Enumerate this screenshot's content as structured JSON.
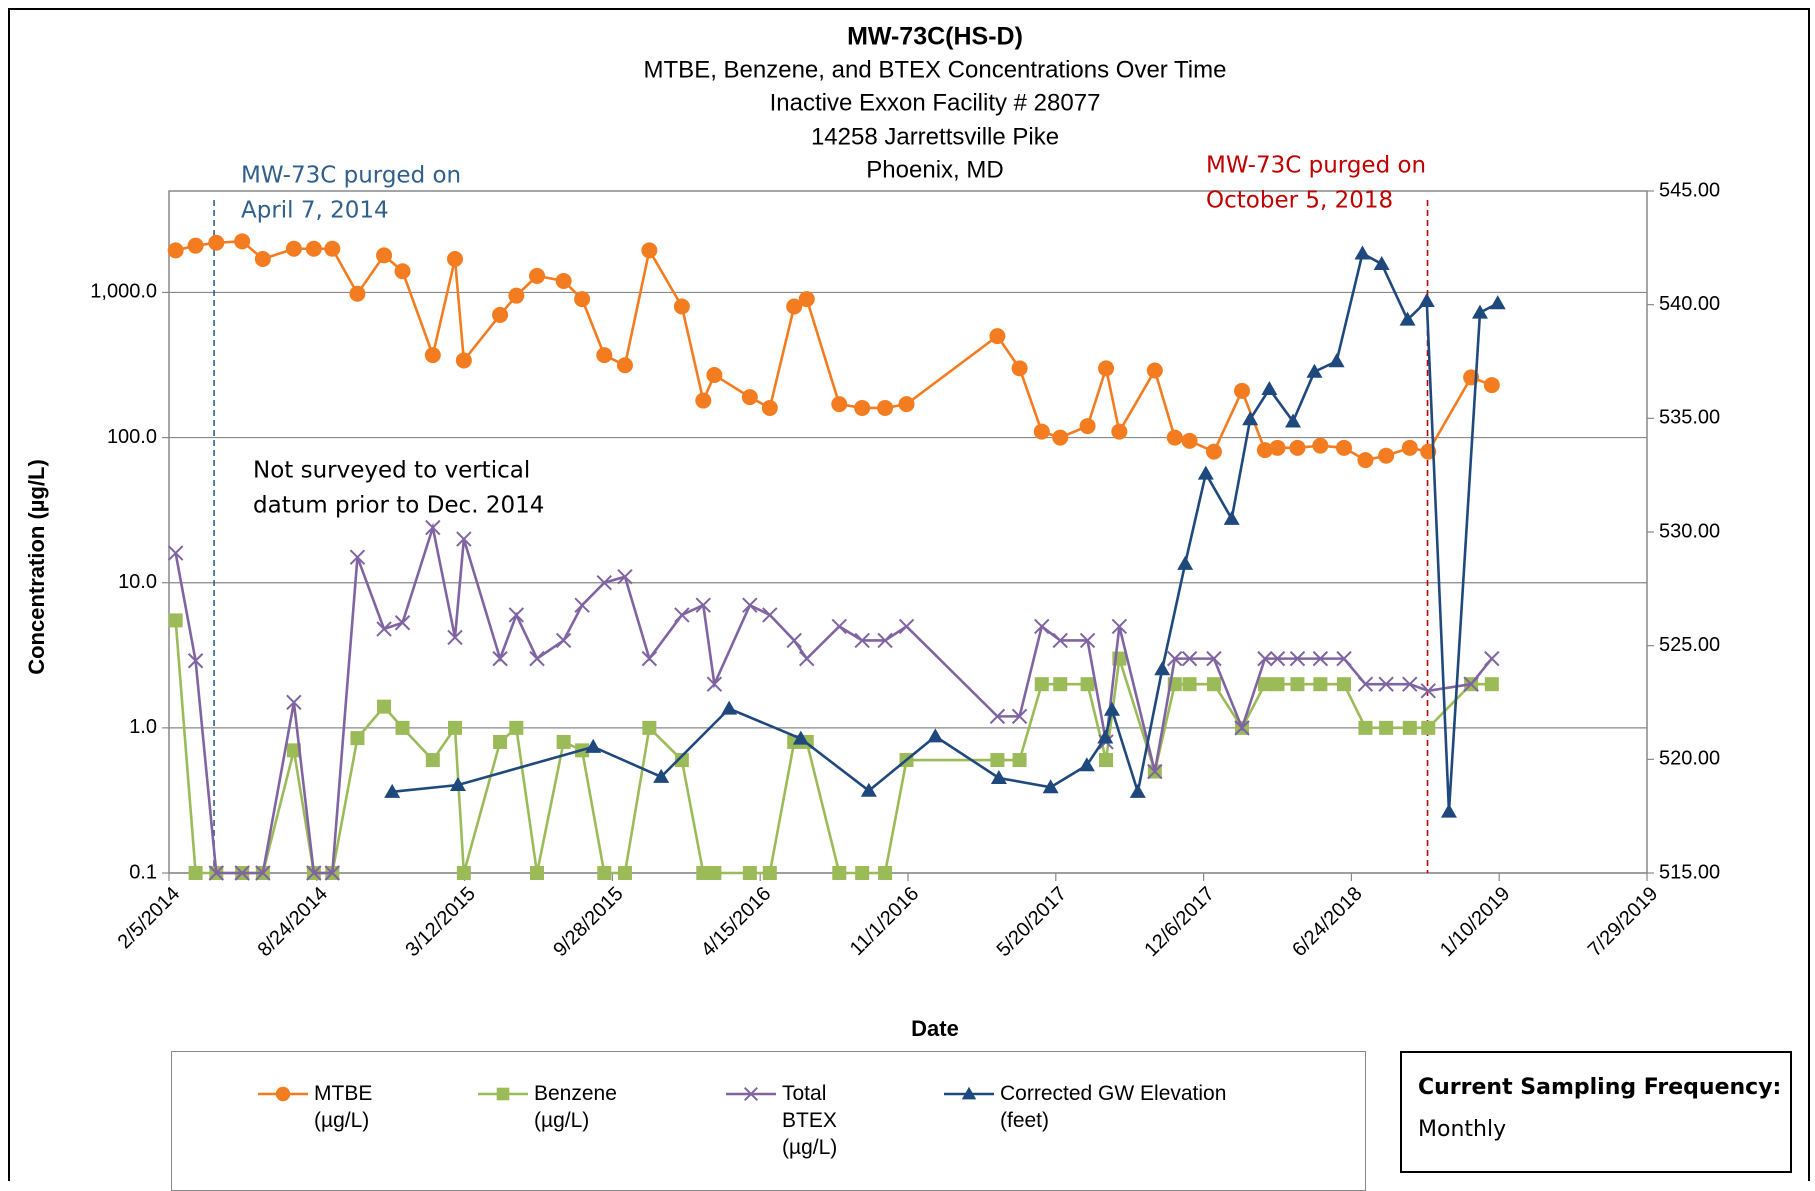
{
  "chart_data": {
    "type": "line",
    "title": "MW-73C(HS-D)",
    "subtitle": [
      "MTBE, Benzene, and BTEX Concentrations Over Time",
      "Inactive Exxon Facility # 28077",
      "14258 Jarrettsville Pike",
      "Phoenix, MD"
    ],
    "x_label": "Date",
    "y_label": "Concentration (µg/L)",
    "yscale": "log",
    "grid": true,
    "xlim": [
      "2014-02-05",
      "2019-07-29"
    ],
    "xticks": [
      {
        "value": "2014-02-05",
        "label": "2/5/2014"
      },
      {
        "value": "2014-08-24",
        "label": "8/24/2014"
      },
      {
        "value": "2015-03-12",
        "label": "3/12/2015"
      },
      {
        "value": "2015-09-28",
        "label": "9/28/2015"
      },
      {
        "value": "2016-04-15",
        "label": "4/15/2016"
      },
      {
        "value": "2016-11-01",
        "label": "11/1/2016"
      },
      {
        "value": "2017-05-20",
        "label": "5/20/2017"
      },
      {
        "value": "2017-12-06",
        "label": "12/6/2017"
      },
      {
        "value": "2018-06-24",
        "label": "6/24/2018"
      },
      {
        "value": "2019-01-10",
        "label": "1/10/2019"
      },
      {
        "value": "2019-07-29",
        "label": "7/29/2019"
      }
    ],
    "ylim": [
      0.1,
      5000
    ],
    "yticks": [
      0.1,
      {
        "value": 1,
        "label": "1.0"
      },
      {
        "value": 10,
        "label": "10.0"
      },
      {
        "value": 100,
        "label": "100.0"
      },
      {
        "value": 1000,
        "label": "1,000.0"
      }
    ],
    "y2lim": [
      515,
      545
    ],
    "y2ticks": [
      {
        "value": 515,
        "label": "515.00"
      },
      {
        "value": 520,
        "label": "520.00"
      },
      {
        "value": 525,
        "label": "525.00"
      },
      {
        "value": 530,
        "label": "530.00"
      },
      {
        "value": 535,
        "label": "535.00"
      },
      {
        "value": 540,
        "label": "540.00"
      },
      {
        "value": 545,
        "label": "545.00"
      }
    ],
    "annotations": [
      {
        "text": [
          "MW-73C purged on",
          "April 7, 2014"
        ],
        "x": "2014-04-07",
        "color": "#2f5f8a",
        "line": true
      },
      {
        "text": [
          "MW-73C purged on",
          "October 5, 2018"
        ],
        "x": "2018-10-05",
        "color": "#c00000",
        "line": true
      },
      {
        "text": [
          "Not surveyed to vertical",
          "datum prior to Dec. 2014"
        ],
        "color": "#000000",
        "line": false
      }
    ],
    "series": [
      {
        "name": "MTBE (µg/L)",
        "color": "#f47c20",
        "marker": "circle",
        "x": [
          "2014-02-14",
          "2014-03-13",
          "2014-04-10",
          "2014-05-15",
          "2014-06-12",
          "2014-07-24",
          "2014-08-20",
          "2014-09-14",
          "2014-10-18",
          "2014-11-23",
          "2014-12-18",
          "2015-01-28",
          "2015-02-27",
          "2015-03-11",
          "2015-04-29",
          "2015-05-21",
          "2015-06-18",
          "2015-07-24",
          "2015-08-18",
          "2015-09-17",
          "2015-10-15",
          "2015-11-17",
          "2015-12-31",
          "2016-01-29",
          "2016-02-13",
          "2016-04-01",
          "2016-04-28",
          "2016-05-31",
          "2016-06-17",
          "2016-07-31",
          "2016-08-31",
          "2016-10-01",
          "2016-10-30",
          "2017-03-02",
          "2017-04-01",
          "2017-05-01",
          "2017-05-26",
          "2017-07-02",
          "2017-07-27",
          "2017-08-14",
          "2017-10-01",
          "2017-10-28",
          "2017-11-17",
          "2017-12-20",
          "2018-01-27",
          "2018-02-27",
          "2018-03-16",
          "2018-04-12",
          "2018-05-13",
          "2018-06-14",
          "2018-07-13",
          "2018-08-10",
          "2018-09-11",
          "2018-10-06",
          "2018-12-03",
          "2018-12-31"
        ],
        "values": [
          1950,
          2100,
          2200,
          2250,
          1700,
          2000,
          2000,
          2000,
          980,
          1800,
          1400,
          370,
          1700,
          340,
          700,
          950,
          1300,
          1200,
          900,
          370,
          315,
          1950,
          800,
          180,
          270,
          190,
          160,
          800,
          900,
          170,
          160,
          160,
          170,
          500,
          300,
          110,
          100,
          120,
          300,
          110,
          290,
          100,
          95,
          80,
          210,
          82,
          85,
          85,
          88,
          85,
          70,
          75,
          85,
          80,
          260,
          230
        ]
      },
      {
        "name": "Benzene (µg/L)",
        "color": "#9bbb59",
        "marker": "square",
        "x": [
          "2014-02-14",
          "2014-03-13",
          "2014-04-10",
          "2014-05-15",
          "2014-06-12",
          "2014-07-24",
          "2014-08-20",
          "2014-09-14",
          "2014-10-18",
          "2014-11-23",
          "2014-12-18",
          "2015-01-28",
          "2015-02-27",
          "2015-03-11",
          "2015-04-29",
          "2015-05-21",
          "2015-06-18",
          "2015-07-24",
          "2015-08-18",
          "2015-09-17",
          "2015-10-15",
          "2015-11-17",
          "2015-12-31",
          "2016-01-29",
          "2016-02-13",
          "2016-04-01",
          "2016-04-28",
          "2016-05-31",
          "2016-06-17",
          "2016-07-31",
          "2016-08-31",
          "2016-10-01",
          "2016-10-30",
          "2017-03-02",
          "2017-04-01",
          "2017-05-01",
          "2017-05-26",
          "2017-07-02",
          "2017-07-27",
          "2017-08-14",
          "2017-10-01",
          "2017-10-28",
          "2017-11-17",
          "2017-12-20",
          "2018-01-27",
          "2018-02-27",
          "2018-03-16",
          "2018-04-12",
          "2018-05-13",
          "2018-06-14",
          "2018-07-13",
          "2018-08-10",
          "2018-09-11",
          "2018-10-06",
          "2018-12-03",
          "2018-12-31"
        ],
        "values": [
          5.5,
          0.1,
          0.1,
          0.1,
          0.1,
          0.7,
          0.1,
          0.1,
          0.85,
          1.4,
          1,
          0.6,
          1,
          0.1,
          0.8,
          1,
          0.1,
          0.8,
          0.7,
          0.1,
          0.1,
          1,
          0.6,
          0.1,
          0.1,
          0.1,
          0.1,
          0.8,
          0.8,
          0.1,
          0.1,
          0.1,
          0.6,
          0.6,
          0.6,
          2,
          2,
          2,
          0.6,
          3,
          0.5,
          2,
          2,
          2,
          1,
          2,
          2,
          2,
          2,
          2,
          1,
          1,
          1,
          1,
          2,
          2
        ]
      },
      {
        "name": "Total BTEX (µg/L)",
        "color": "#8064a2",
        "marker": "x",
        "x": [
          "2014-02-14",
          "2014-03-13",
          "2014-04-10",
          "2014-05-15",
          "2014-06-12",
          "2014-07-24",
          "2014-08-20",
          "2014-09-14",
          "2014-10-18",
          "2014-11-23",
          "2014-12-18",
          "2015-01-28",
          "2015-02-27",
          "2015-03-11",
          "2015-04-29",
          "2015-05-21",
          "2015-06-18",
          "2015-07-24",
          "2015-08-18",
          "2015-09-17",
          "2015-10-15",
          "2015-11-17",
          "2015-12-31",
          "2016-01-29",
          "2016-02-13",
          "2016-04-01",
          "2016-04-28",
          "2016-05-31",
          "2016-06-17",
          "2016-07-31",
          "2016-08-31",
          "2016-10-01",
          "2016-10-30",
          "2017-03-02",
          "2017-04-01",
          "2017-05-01",
          "2017-05-26",
          "2017-07-02",
          "2017-07-27",
          "2017-08-14",
          "2017-10-01",
          "2017-10-28",
          "2017-11-17",
          "2017-12-20",
          "2018-01-27",
          "2018-02-27",
          "2018-03-16",
          "2018-04-12",
          "2018-05-13",
          "2018-06-14",
          "2018-07-13",
          "2018-08-10",
          "2018-09-11",
          "2018-10-06",
          "2018-12-03",
          "2018-12-31"
        ],
        "values": [
          16,
          2.9,
          0.1,
          0.1,
          0.1,
          1.5,
          0.1,
          0.1,
          15,
          4.8,
          5.3,
          24,
          4.2,
          20,
          3,
          6,
          3,
          4,
          7,
          10,
          11,
          3,
          6,
          7,
          2,
          7,
          6,
          4,
          3,
          5,
          4,
          4,
          5,
          1.2,
          1.2,
          5,
          4,
          4,
          0.8,
          5,
          0.5,
          3,
          3,
          3,
          1,
          3,
          3,
          3,
          3,
          3,
          2,
          2,
          2,
          1.8,
          2,
          3
        ]
      },
      {
        "name": "Corrected GW Elevation (feet)",
        "color": "#1f497d",
        "marker": "triangle",
        "axis": "y2",
        "x": [
          "2014-12-04",
          "2015-03-03",
          "2015-09-02",
          "2015-12-03",
          "2016-03-04",
          "2016-06-09",
          "2016-09-09",
          "2016-12-08",
          "2017-03-04",
          "2017-05-13",
          "2017-07-01",
          "2017-07-26",
          "2017-08-04",
          "2017-09-08",
          "2017-10-11",
          "2017-11-11",
          "2017-12-09",
          "2018-01-13",
          "2018-02-07",
          "2018-03-05",
          "2018-04-06",
          "2018-05-05",
          "2018-06-04",
          "2018-07-09",
          "2018-08-04",
          "2018-09-08",
          "2018-10-04",
          "2018-11-03",
          "2018-12-15",
          "2019-01-08"
        ],
        "values": [
          518.57,
          518.87,
          520.55,
          519.23,
          522.23,
          520.91,
          518.62,
          521.01,
          519.18,
          518.77,
          519.74,
          520.96,
          522.18,
          518.57,
          523.96,
          528.6,
          532.57,
          530.58,
          534.96,
          536.29,
          534.86,
          537.05,
          537.51,
          542.25,
          541.79,
          539.34,
          540.16,
          517.7,
          539.65,
          540.06
        ]
      }
    ]
  },
  "sampling_box": {
    "title": "Current Sampling Frequency:",
    "value": "Monthly"
  }
}
